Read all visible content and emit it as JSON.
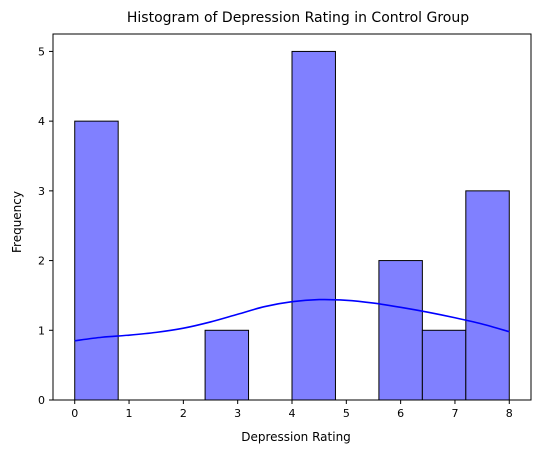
{
  "chart_data": {
    "type": "bar",
    "subtype": "histogram",
    "title": "Histogram of Depression Rating in Control Group",
    "xlabel": "Depression Rating",
    "ylabel": "Frequency",
    "xlim": [
      -0.4,
      8.4
    ],
    "ylim": [
      0,
      5.25
    ],
    "xticks": [
      0,
      1,
      2,
      3,
      4,
      5,
      6,
      7,
      8
    ],
    "yticks": [
      0,
      1,
      2,
      3,
      4,
      5
    ],
    "bins": [
      {
        "start": 0.0,
        "end": 0.8,
        "count": 4
      },
      {
        "start": 0.8,
        "end": 1.6,
        "count": 0
      },
      {
        "start": 1.6,
        "end": 2.4,
        "count": 0
      },
      {
        "start": 2.4,
        "end": 3.2,
        "count": 1
      },
      {
        "start": 3.2,
        "end": 4.0,
        "count": 0
      },
      {
        "start": 4.0,
        "end": 4.8,
        "count": 5
      },
      {
        "start": 4.8,
        "end": 5.6,
        "count": 0
      },
      {
        "start": 5.6,
        "end": 6.4,
        "count": 2
      },
      {
        "start": 6.4,
        "end": 7.2,
        "count": 1
      },
      {
        "start": 7.2,
        "end": 8.0,
        "count": 3
      }
    ],
    "kde": {
      "x": [
        0,
        0.5,
        1,
        1.5,
        2,
        2.5,
        3,
        3.5,
        4,
        4.5,
        5,
        5.5,
        6,
        6.5,
        7,
        7.5,
        8
      ],
      "y": [
        0.85,
        0.9,
        0.93,
        0.97,
        1.03,
        1.12,
        1.23,
        1.34,
        1.41,
        1.44,
        1.43,
        1.39,
        1.33,
        1.26,
        1.18,
        1.09,
        0.98
      ]
    },
    "grid": false,
    "colors": {
      "bar_fill": "#8080ff",
      "bar_edge": "#000000",
      "kde_line": "#0000ff"
    }
  }
}
